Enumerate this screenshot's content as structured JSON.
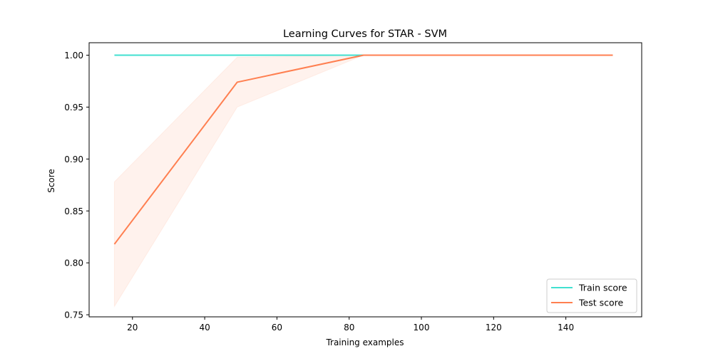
{
  "chart_data": {
    "type": "line",
    "title": "Learning Curves for STAR - SVM",
    "xlabel": "Training examples",
    "ylabel": "Score",
    "xlim": [
      8,
      161
    ],
    "ylim": [
      0.748,
      1.012
    ],
    "xticks": [
      20,
      40,
      60,
      80,
      100,
      120,
      140
    ],
    "yticks": [
      0.75,
      0.8,
      0.85,
      0.9,
      0.95,
      1.0
    ],
    "ytick_labels": [
      "0.75",
      "0.80",
      "0.85",
      "0.90",
      "0.95",
      "1.00"
    ],
    "x": [
      15,
      49,
      84,
      118,
      153
    ],
    "series": [
      {
        "name": "Train score",
        "color": "#40e0d0",
        "values": [
          1.0,
          1.0,
          1.0,
          1.0,
          1.0
        ],
        "band_lower": [
          1.0,
          1.0,
          1.0,
          1.0,
          1.0
        ],
        "band_upper": [
          1.0,
          1.0,
          1.0,
          1.0,
          1.0
        ]
      },
      {
        "name": "Test score",
        "color": "#ff7f50",
        "values": [
          0.818,
          0.974,
          1.0,
          1.0,
          1.0
        ],
        "band_lower": [
          0.758,
          0.95,
          1.0,
          1.0,
          1.0
        ],
        "band_upper": [
          0.878,
          0.998,
          1.0,
          1.0,
          1.0
        ]
      }
    ],
    "legend_position": "lower-right",
    "grid": false
  }
}
